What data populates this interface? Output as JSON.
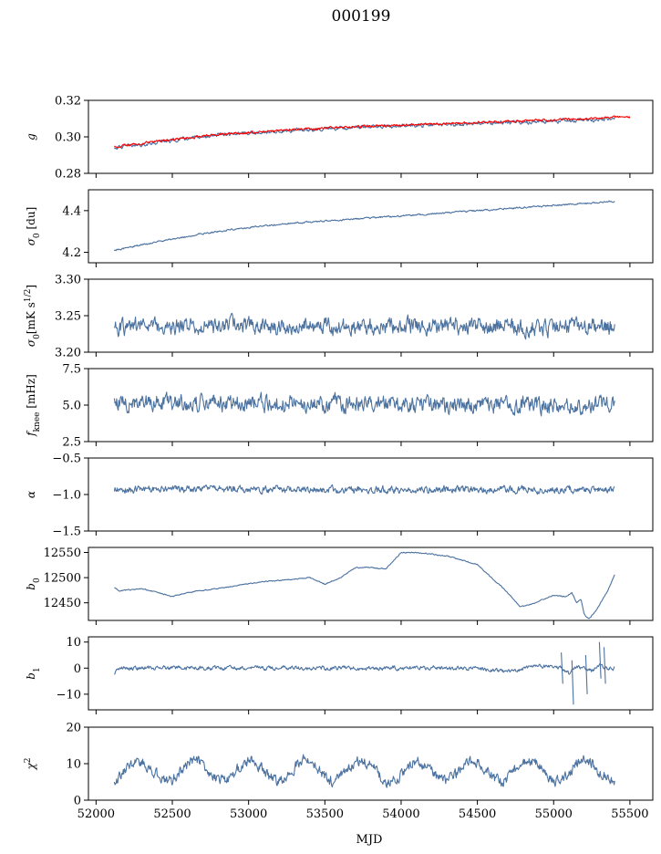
{
  "title": "000199",
  "xlabel": "MJD",
  "colors": {
    "data": "#4c72a0",
    "model": "#ff0000"
  },
  "xlim": [
    51950,
    55650
  ],
  "xticks": [
    "52000",
    "52500",
    "53000",
    "53500",
    "54000",
    "54500",
    "55000",
    "55500"
  ],
  "chart_data": [
    {
      "type": "line",
      "id": "g",
      "ylabel": "g",
      "ylim": [
        0.28,
        0.32
      ],
      "yticks": [
        "0.28",
        "0.30",
        "0.32"
      ],
      "series": [
        {
          "name": "g (data)",
          "color": "#4c72a0",
          "x": [
            52120,
            52400,
            52800,
            53200,
            53600,
            54000,
            54400,
            54800,
            55200,
            55400
          ],
          "y": [
            0.294,
            0.297,
            0.301,
            0.303,
            0.305,
            0.306,
            0.307,
            0.308,
            0.309,
            0.31
          ],
          "noise": 0.0008
        },
        {
          "name": "g (model)",
          "color": "#ff0000",
          "x": [
            52120,
            52400,
            52800,
            53200,
            53600,
            54000,
            54400,
            54800,
            55200,
            55400,
            55500
          ],
          "y": [
            0.2945,
            0.2975,
            0.3012,
            0.3035,
            0.3052,
            0.3065,
            0.3075,
            0.3088,
            0.3098,
            0.3108,
            0.3105
          ],
          "noise": 0.0005
        }
      ]
    },
    {
      "type": "line",
      "id": "sigma0-du",
      "ylabel": "σ0 [du]",
      "ylim": [
        4.15,
        4.5
      ],
      "yticks": [
        "4.2",
        "4.4"
      ],
      "series": [
        {
          "name": "sigma0 [du]",
          "color": "#4c72a0",
          "x": [
            52120,
            52400,
            52700,
            53000,
            53300,
            53600,
            53900,
            54200,
            54500,
            54800,
            55100,
            55400
          ],
          "y": [
            4.21,
            4.25,
            4.29,
            4.32,
            4.34,
            4.355,
            4.37,
            4.385,
            4.4,
            4.415,
            4.43,
            4.445
          ],
          "noise": 0.003
        }
      ]
    },
    {
      "type": "line",
      "id": "sigma0-mks",
      "ylabel": "σ0[mK s^1/2]",
      "ylim": [
        3.2,
        3.3
      ],
      "yticks": [
        "3.20",
        "3.25",
        "3.30"
      ],
      "series": [
        {
          "name": "sigma0 [mK s^1/2]",
          "color": "#4c72a0",
          "x": [
            52120,
            55400
          ],
          "y": [
            3.235,
            3.235
          ],
          "noise": 0.009
        }
      ]
    },
    {
      "type": "line",
      "id": "fknee",
      "ylabel": "fknee [mHz]",
      "ylim": [
        2.5,
        7.5
      ],
      "yticks": [
        "2.5",
        "5.0",
        "7.5"
      ],
      "series": [
        {
          "name": "fknee [mHz]",
          "color": "#4c72a0",
          "x": [
            52120,
            55400
          ],
          "y": [
            5.2,
            5.0
          ],
          "noise": 0.45
        }
      ]
    },
    {
      "type": "line",
      "id": "alpha",
      "ylabel": "α",
      "ylim": [
        -1.5,
        -0.5
      ],
      "yticks": [
        "−1.5",
        "−1.0",
        "−0.5"
      ],
      "series": [
        {
          "name": "alpha",
          "color": "#4c72a0",
          "x": [
            52120,
            55400
          ],
          "y": [
            -0.93,
            -0.93
          ],
          "noise": 0.04
        }
      ]
    },
    {
      "type": "line",
      "id": "b0",
      "ylabel": "b0",
      "ylim": [
        12415,
        12560
      ],
      "yticks": [
        "12450",
        "12500",
        "12550"
      ],
      "series": [
        {
          "name": "b0",
          "color": "#4c72a0",
          "x": [
            52120,
            52150,
            52300,
            52500,
            52650,
            52800,
            53000,
            53100,
            53400,
            53500,
            53600,
            53700,
            53800,
            53900,
            54000,
            54100,
            54300,
            54500,
            54700,
            54780,
            54850,
            55000,
            55080,
            55120,
            55150,
            55180,
            55200,
            55230,
            55280,
            55350,
            55400
          ],
          "y": [
            12480,
            12474,
            12478,
            12463,
            12473,
            12478,
            12488,
            12492,
            12500,
            12487,
            12500,
            12520,
            12520,
            12517,
            12550,
            12550,
            12543,
            12526,
            12470,
            12442,
            12447,
            12465,
            12462,
            12470,
            12450,
            12457,
            12427,
            12418,
            12435,
            12472,
            12505
          ],
          "noise": 0.8
        }
      ]
    },
    {
      "type": "line",
      "id": "b1",
      "ylabel": "b1",
      "ylim": [
        -16,
        12
      ],
      "yticks": [
        "−10",
        "0",
        "10"
      ],
      "series": [
        {
          "name": "b1",
          "color": "#4c72a0",
          "x": [
            52120,
            52135,
            52150,
            54500,
            54700,
            54900,
            55000,
            55050,
            55100,
            55150,
            55200,
            55250,
            55300,
            55350,
            55400
          ],
          "y": [
            -3,
            0,
            0,
            0,
            -1.5,
            1,
            0.5,
            0,
            -2,
            1,
            0,
            -1,
            1,
            0,
            0
          ],
          "noise": 0.6
        },
        {
          "name": "b1 glitches",
          "color": "#4c72a0",
          "x": [
            55050,
            55060,
            55120,
            55130,
            55210,
            55220,
            55300,
            55310,
            55330,
            55340
          ],
          "y": [
            6,
            -6,
            3,
            -14,
            5,
            -10,
            10,
            -4,
            8,
            -6
          ],
          "noise": 0
        }
      ]
    },
    {
      "type": "line",
      "id": "chi2",
      "ylabel": "χ2",
      "ylim": [
        0,
        20
      ],
      "yticks": [
        "0",
        "10",
        "20"
      ],
      "series": [
        {
          "name": "chi2",
          "color": "#4c72a0",
          "x": [
            52120,
            55400
          ],
          "y": [
            8,
            8
          ],
          "noise": 1.2,
          "period": 365,
          "amplitude": 2.8
        }
      ]
    }
  ]
}
